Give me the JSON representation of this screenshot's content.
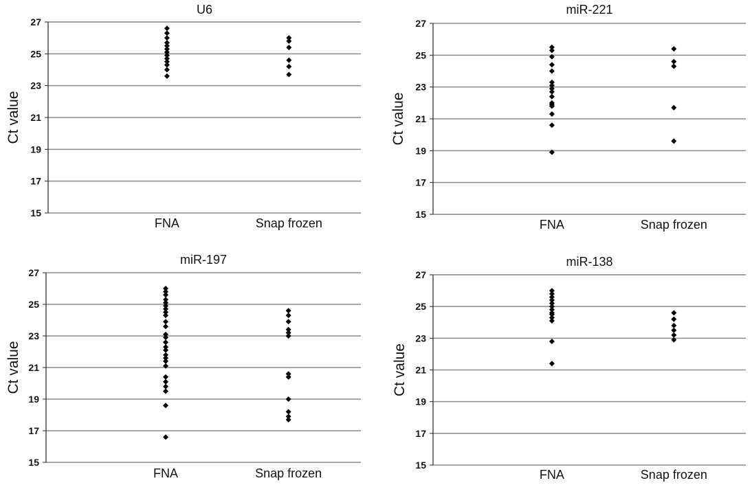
{
  "chart_data": [
    {
      "type": "scatter",
      "title": "U6",
      "ylabel": "Ct value",
      "ylim": [
        15,
        27
      ],
      "yticks": [
        "15",
        "17",
        "19",
        "21",
        "23",
        "25",
        "27"
      ],
      "grid": true,
      "categories": [
        "FNA",
        "Snap frozen"
      ],
      "series": [
        {
          "values": [
            26.6,
            26.3,
            26.0,
            25.7,
            25.5,
            25.3,
            25.1,
            24.9,
            24.7,
            24.5,
            24.3,
            24.0,
            23.6
          ]
        },
        {
          "values": [
            26.0,
            25.8,
            25.4,
            24.6,
            24.2,
            23.7
          ]
        }
      ]
    },
    {
      "type": "scatter",
      "title": "miR-221",
      "ylabel": "Ct value",
      "ylim": [
        15,
        27
      ],
      "yticks": [
        "15",
        "17",
        "19",
        "21",
        "23",
        "25",
        "27"
      ],
      "grid": true,
      "categories": [
        "FNA",
        "Snap frozen"
      ],
      "series": [
        {
          "values": [
            25.5,
            25.3,
            24.9,
            24.4,
            24.0,
            23.3,
            23.1,
            22.9,
            22.7,
            22.4,
            22.0,
            21.9,
            21.8,
            21.3,
            20.6,
            18.9
          ]
        },
        {
          "values": [
            25.4,
            24.6,
            24.3,
            21.7,
            19.6
          ]
        }
      ]
    },
    {
      "type": "scatter",
      "title": "miR-197",
      "ylabel": "Ct value",
      "ylim": [
        15,
        27
      ],
      "yticks": [
        "15",
        "17",
        "19",
        "21",
        "23",
        "25",
        "27"
      ],
      "grid": true,
      "categories": [
        "FNA",
        "Snap frozen"
      ],
      "series": [
        {
          "values": [
            26.0,
            25.8,
            25.6,
            25.3,
            25.1,
            24.9,
            24.7,
            24.5,
            24.3,
            23.9,
            23.6,
            23.1,
            22.9,
            22.6,
            22.3,
            22.1,
            21.8,
            21.6,
            21.4,
            21.1,
            20.4,
            20.1,
            19.8,
            19.5,
            18.6,
            16.6
          ]
        },
        {
          "values": [
            24.6,
            24.3,
            23.9,
            23.4,
            23.2,
            23.0,
            20.6,
            20.4,
            19.0,
            18.2,
            17.9,
            17.7
          ]
        }
      ]
    },
    {
      "type": "scatter",
      "title": "miR-138",
      "ylabel": "Ct value",
      "ylim": [
        15,
        27
      ],
      "yticks": [
        "15",
        "17",
        "19",
        "21",
        "23",
        "25",
        "27"
      ],
      "grid": true,
      "categories": [
        "FNA",
        "Snap frozen"
      ],
      "series": [
        {
          "values": [
            26.0,
            25.8,
            25.6,
            25.4,
            25.2,
            25.0,
            24.8,
            24.6,
            24.5,
            24.3,
            24.1,
            22.8,
            21.4
          ]
        },
        {
          "values": [
            24.6,
            24.2,
            23.8,
            23.5,
            23.2,
            22.9
          ]
        }
      ]
    }
  ]
}
